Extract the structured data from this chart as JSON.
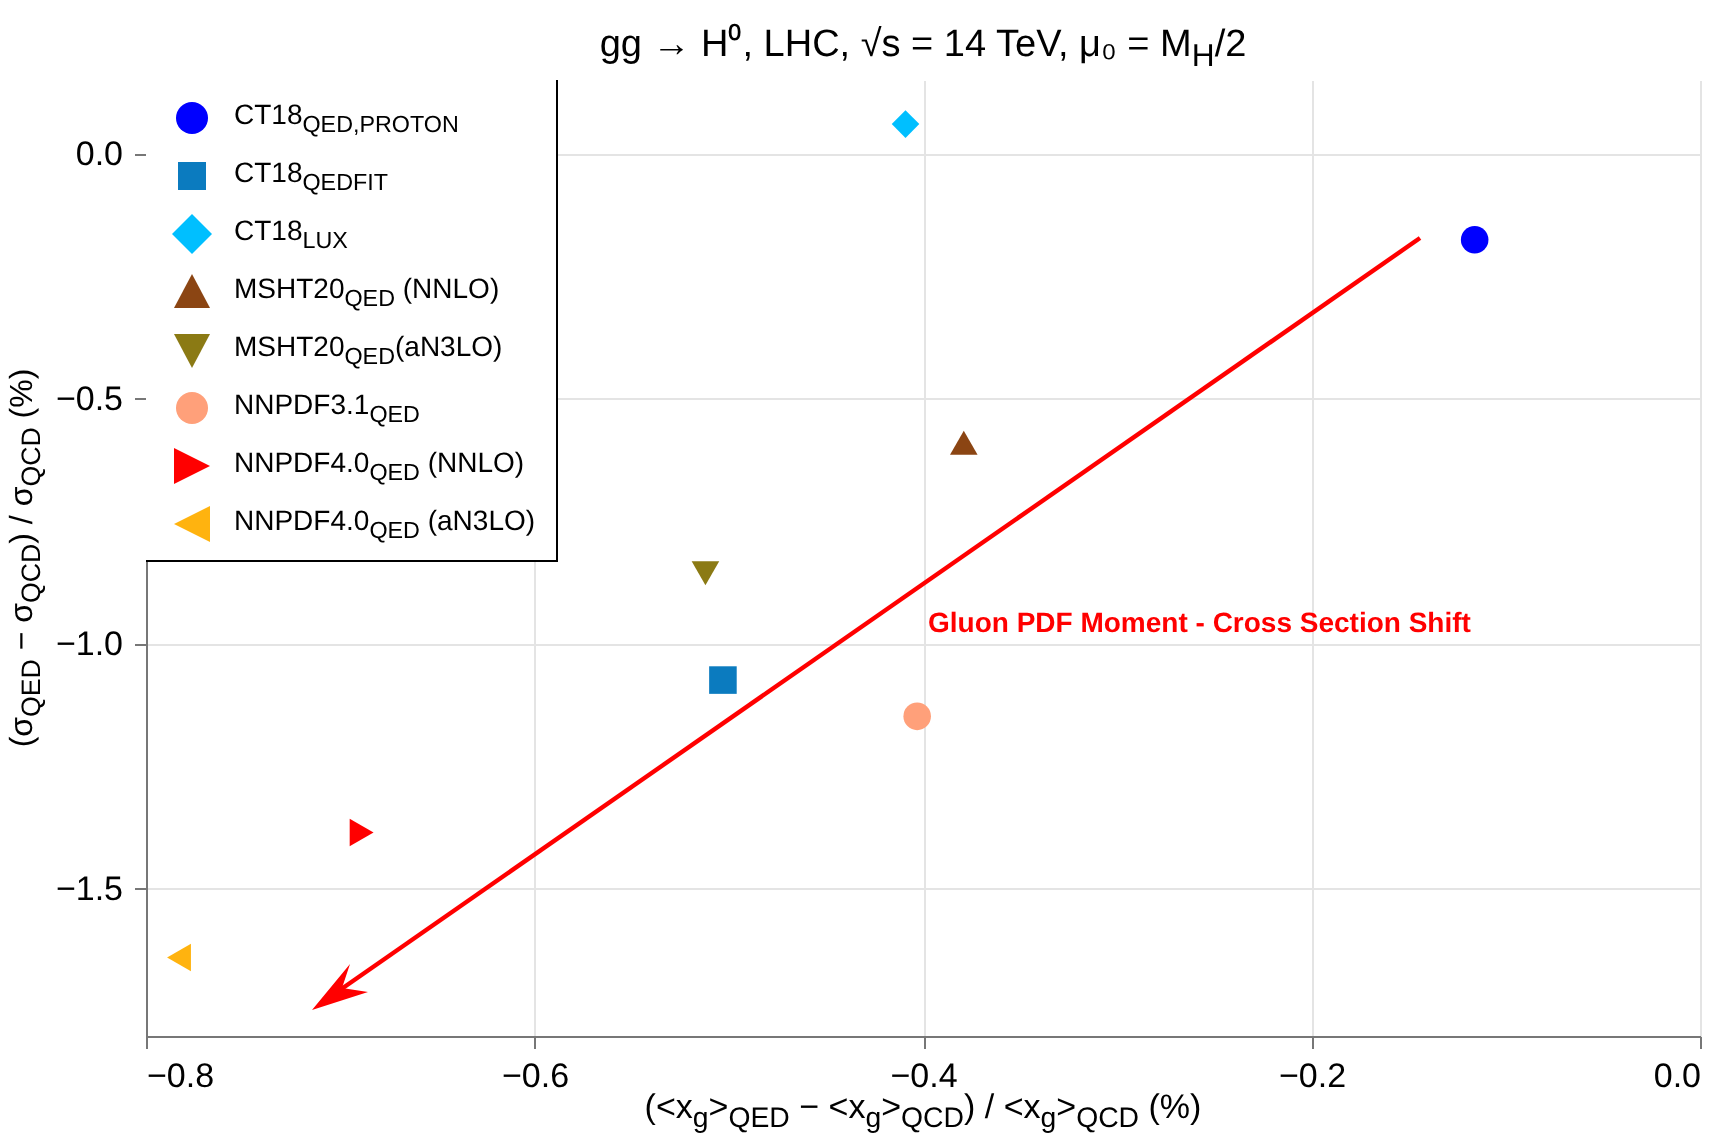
{
  "chart_data": {
    "type": "scatter",
    "title": "gg → H⁰, LHC, √s = 14 TeV, μ₀ = M$_{H}$/2",
    "xlabel": "(<x$_{g}$>$_{QED}$ − <x$_{g}$>$_{QCD}$) / <x$_{g}$>$_{QCD}$ (%)",
    "ylabel": "(σ$_{QED}$ − σ$_{QCD}$) / σ$_{QCD}$ (%)",
    "xlim": [
      -0.8,
      0.0
    ],
    "xticks": [
      {
        "value": -0.8,
        "label": "−0.8"
      },
      {
        "value": -0.6,
        "label": "−0.6"
      },
      {
        "value": -0.4,
        "label": "−0.4"
      },
      {
        "value": -0.2,
        "label": "−0.2"
      },
      {
        "value": 0,
        "label": "0.0"
      }
    ],
    "ylim": [
      -1.8,
      0.15
    ],
    "yticks": [
      {
        "value": -1.5,
        "label": "−1.5"
      },
      {
        "value": -1.0,
        "label": "−1.0"
      },
      {
        "value": -0.5,
        "label": "−0.5"
      },
      {
        "value": 0,
        "label": "0.0"
      }
    ],
    "grid": true,
    "legend": "top left",
    "annotations": [
      "Gluon PDF Moment - Cross Section Shift"
    ],
    "series": [
      {
        "name": "CT18$_{QED,PROTON}$",
        "color": "#0000ff",
        "marker": "circle",
        "x": [
          -0.116
        ],
        "values": [
          -0.176
        ]
      },
      {
        "name": "CT18$_{QEDFIT}$",
        "color": "#0b7bbf",
        "marker": "square",
        "x": [
          -0.503
        ],
        "values": [
          -1.074
        ]
      },
      {
        "name": "CT18$_{LUX}$",
        "color": "#00bfff",
        "marker": "diamond",
        "x": [
          -0.409
        ],
        "values": [
          0.06
        ]
      },
      {
        "name": "MSHT20$_{QED}$ (NNLO)",
        "color": "#8b4513",
        "marker": "triangle-up",
        "x": [
          -0.379
        ],
        "values": [
          -0.59
        ]
      },
      {
        "name": "MSHT20$_{QED}$(aN3LO)",
        "color": "#8b7a14",
        "marker": "triangle-down",
        "x": [
          -0.512
        ],
        "values": [
          -0.856
        ]
      },
      {
        "name": "NNPDF3.1$_{QED}$",
        "color": "#ffa07a",
        "marker": "circle",
        "x": [
          -0.403
        ],
        "values": [
          -1.148
        ]
      },
      {
        "name": "NNPDF4.0$_{QED}$ (NNLO)",
        "color": "#ff0000",
        "marker": "triangle-right",
        "x": [
          -0.689
        ],
        "values": [
          -1.385
        ]
      },
      {
        "name": "NNPDF4.0$_{QED}$ (aN3LO)",
        "color": "#ffb30f",
        "marker": "triangle-left",
        "x": [
          -0.783
        ],
        "values": [
          -1.64
        ]
      }
    ]
  }
}
